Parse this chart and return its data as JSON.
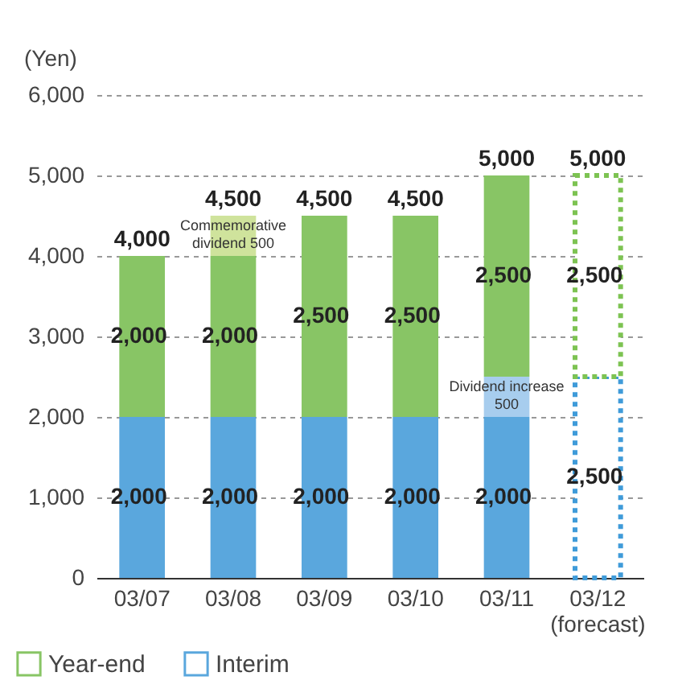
{
  "chart_data": {
    "type": "bar",
    "stacked": true,
    "ylabel": "(Yen)",
    "categories": [
      "03/07",
      "03/08",
      "03/09",
      "03/10",
      "03/11",
      "03/12\n(forecast)"
    ],
    "series": [
      {
        "name": "Interim",
        "color": "#5aa7dd",
        "values": [
          2000,
          2000,
          2000,
          2000,
          2000,
          null
        ],
        "value_labels": [
          "2,000",
          "2,000",
          "2,000",
          "2,000",
          "2,000",
          null
        ]
      },
      {
        "color": "#3f9bd9",
        "line_style": "dotted",
        "values": [
          null,
          null,
          null,
          null,
          null,
          2500
        ],
        "value_labels": [
          null,
          null,
          null,
          null,
          null,
          "2,500"
        ]
      },
      {
        "color": "#a7cdee",
        "values": [
          null,
          null,
          null,
          null,
          500,
          null
        ]
      },
      {
        "name": "Year-end",
        "color": "#88c565",
        "values": [
          2000,
          2000,
          2500,
          2500,
          2500,
          null
        ],
        "value_labels": [
          "2,000",
          "2,000",
          "2,500",
          "2,500",
          "2,500",
          null
        ]
      },
      {
        "color": "#7dc352",
        "line_style": "dotted",
        "values": [
          null,
          null,
          null,
          null,
          null,
          2500
        ],
        "value_labels": [
          null,
          null,
          null,
          null,
          null,
          "2,500"
        ]
      },
      {
        "color": "#cfe39c",
        "values": [
          null,
          500,
          null,
          null,
          null,
          null
        ]
      }
    ],
    "totals": [
      "4,000",
      "4,500",
      "4,500",
      "4,500",
      "5,000",
      "5,000"
    ],
    "annotations": [
      {
        "text": "Commemorative\ndividend 500",
        "x": "03/08",
        "y": 4500
      },
      {
        "text": "Dividend increase\n500",
        "x": "03/11",
        "y": 2500
      }
    ],
    "ylim": [
      0,
      6000
    ],
    "yticks": [
      0,
      {
        "value": 1000,
        "label": "1,000"
      },
      {
        "value": 2000,
        "label": "2,000"
      },
      {
        "value": 3000,
        "label": "3,000"
      },
      {
        "value": 4000,
        "label": "4,000"
      },
      {
        "value": 5000,
        "label": "5,000"
      },
      {
        "value": 6000,
        "label": "6,000"
      }
    ],
    "grid": "y",
    "legend": "bottom left"
  }
}
